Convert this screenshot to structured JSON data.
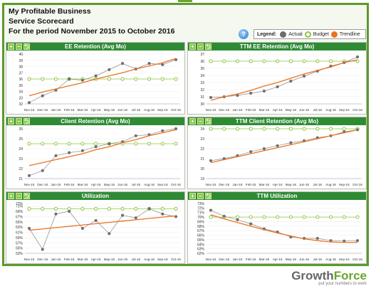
{
  "header": {
    "line1": "My Profitable Business",
    "line2": "Service Scorecard",
    "line3": "For the period November 2015 to October 2016"
  },
  "legend": {
    "title": "Legend:",
    "items": [
      {
        "label": "Actual",
        "color": "#6d6d6d"
      },
      {
        "label": "Budget",
        "color": "#8dc63f"
      },
      {
        "label": "Trendline",
        "color": "#e8731e"
      }
    ]
  },
  "help_icon": "help-question-icon",
  "controls": {
    "add": "+",
    "remove": "−",
    "export": "⮌"
  },
  "brand": {
    "name_a": "Growth",
    "name_b": "Force",
    "tagline": "put your numbers to work"
  },
  "chart_data": [
    {
      "type": "line",
      "title": "EE Retention (Avg Mo)",
      "categories": [
        "Nov-15",
        "Dec-15",
        "Jan-16",
        "Feb-16",
        "Mar-16",
        "Apr-16",
        "May-16",
        "Jun-16",
        "Jul-16",
        "Aug-16",
        "Sep-16",
        "Oct-16"
      ],
      "ylim": [
        32,
        40
      ],
      "ticks": [
        32,
        33,
        34,
        35,
        36,
        37,
        38,
        39,
        40
      ],
      "series": [
        {
          "name": "Actual",
          "values": [
            32.2,
            33.3,
            34.2,
            36.0,
            35.8,
            36.5,
            37.5,
            38.5,
            37.6,
            38.5,
            38.3,
            39.1
          ]
        },
        {
          "name": "Budget",
          "values": [
            36,
            36,
            36,
            36,
            36,
            36,
            36,
            36,
            36,
            36,
            36,
            36
          ]
        },
        {
          "name": "Trendline",
          "values": [
            33.3,
            33.9,
            34.4,
            34.9,
            35.4,
            36.0,
            36.5,
            37.0,
            37.6,
            38.1,
            38.6,
            39.3
          ]
        }
      ]
    },
    {
      "type": "line",
      "title": "TTM EE Retention (Avg Mo)",
      "categories": [
        "Nov-15",
        "Dec-15",
        "Jan-16",
        "Feb-16",
        "Mar-16",
        "Apr-16",
        "May-16",
        "Jun-16",
        "Jul-16",
        "Aug-16",
        "Sep-16",
        "Oct-16"
      ],
      "ylim": [
        30,
        37
      ],
      "ticks": [
        30,
        31,
        32,
        33,
        34,
        35,
        36,
        37
      ],
      "series": [
        {
          "name": "Actual",
          "values": [
            30.9,
            31.0,
            31.2,
            31.5,
            31.8,
            32.4,
            33.2,
            33.9,
            34.6,
            35.3,
            35.8,
            36.6
          ]
        },
        {
          "name": "Budget",
          "values": [
            36,
            36,
            36,
            36,
            36,
            36,
            36,
            36,
            36,
            36,
            36,
            36
          ]
        },
        {
          "name": "Trendline",
          "values": [
            30.5,
            31.0,
            31.4,
            31.9,
            32.5,
            33.0,
            33.6,
            34.2,
            34.7,
            35.2,
            35.8,
            36.2
          ]
        }
      ]
    },
    {
      "type": "line",
      "title": "Client Retention (Avg Mo)",
      "categories": [
        "Nov-15",
        "Dec-15",
        "Jan-16",
        "Feb-16",
        "Mar-16",
        "Apr-16",
        "May-16",
        "Jun-16",
        "Jul-16",
        "Aug-16",
        "Sep-16",
        "Oct-16"
      ],
      "ylim": [
        21,
        26
      ],
      "ticks": [
        21,
        22,
        23,
        24,
        25,
        26
      ],
      "series": [
        {
          "name": "Actual",
          "values": [
            21.3,
            21.8,
            23.3,
            23.6,
            23.8,
            24.2,
            24.5,
            24.7,
            25.3,
            25.4,
            25.8,
            26.0
          ]
        },
        {
          "name": "Budget",
          "values": [
            24.5,
            24.5,
            24.5,
            24.5,
            24.5,
            24.5,
            24.5,
            24.5,
            24.5,
            24.5,
            24.5,
            24.5
          ]
        },
        {
          "name": "Trendline",
          "values": [
            22.3,
            22.6,
            22.9,
            23.2,
            23.5,
            23.9,
            24.2,
            24.6,
            24.9,
            25.3,
            25.6,
            25.9
          ]
        }
      ]
    },
    {
      "type": "line",
      "title": "TTM Client Retention (Avg Mo)",
      "categories": [
        "Nov-15",
        "Dec-15",
        "Jan-16",
        "Feb-16",
        "Mar-16",
        "Apr-16",
        "May-16",
        "Jun-16",
        "Jul-16",
        "Aug-16",
        "Sep-16",
        "Oct-16"
      ],
      "ylim": [
        19,
        24
      ],
      "ticks": [
        19,
        20,
        21,
        22,
        23,
        24
      ],
      "series": [
        {
          "name": "Actual",
          "values": [
            20.8,
            21.0,
            21.3,
            21.7,
            22.0,
            22.3,
            22.6,
            22.8,
            23.1,
            23.3,
            23.7,
            23.9
          ]
        },
        {
          "name": "Budget",
          "values": [
            24,
            24,
            24,
            24,
            24,
            24,
            24,
            24,
            24,
            24,
            24,
            24
          ]
        },
        {
          "name": "Trendline",
          "values": [
            20.6,
            20.9,
            21.2,
            21.5,
            21.8,
            22.1,
            22.4,
            22.7,
            23.0,
            23.3,
            23.6,
            23.9
          ]
        }
      ]
    },
    {
      "type": "line",
      "title": "Utilization",
      "categories": [
        "Nov-15",
        "Dec-15",
        "Jan-16",
        "Feb-16",
        "Mar-16",
        "Apr-16",
        "May-16",
        "Jun-16",
        "Jul-16",
        "Aug-16",
        "Sep-16",
        "Oct-16"
      ],
      "ylim": [
        53,
        72
      ],
      "ticks": [
        "53%",
        "55%",
        "57%",
        "59%",
        "61%",
        "63%",
        "65%",
        "67%",
        "69%",
        "71%",
        "72%"
      ],
      "tick_values": [
        53,
        55,
        57,
        59,
        61,
        63,
        65,
        67,
        69,
        71,
        72
      ],
      "series": [
        {
          "name": "Actual",
          "values": [
            62.5,
            54.5,
            68.0,
            69.0,
            62.5,
            65.5,
            60.5,
            67.5,
            66.5,
            70.0,
            68.0,
            67.0
          ]
        },
        {
          "name": "Budget",
          "values": [
            70,
            70,
            70,
            70,
            70,
            70,
            70,
            70,
            70,
            70,
            70,
            70
          ]
        },
        {
          "name": "Trendline",
          "values": [
            61.8,
            62.3,
            62.8,
            63.3,
            63.8,
            64.3,
            64.8,
            65.3,
            65.8,
            66.3,
            66.8,
            67.3
          ]
        }
      ]
    },
    {
      "type": "line",
      "title": "TTM Utilization",
      "categories": [
        "Nov-15",
        "Dec-15",
        "Jan-16",
        "Feb-16",
        "Mar-16",
        "Apr-16",
        "May-16",
        "Jun-16",
        "Jul-16",
        "Aug-16",
        "Sep-16",
        "Oct-16"
      ],
      "ylim": [
        62,
        73
      ],
      "ticks": [
        "62%",
        "63%",
        "64%",
        "65%",
        "66%",
        "67%",
        "68%",
        "69%",
        "70%",
        "71%",
        "72%",
        "73%"
      ],
      "tick_values": [
        62,
        63,
        64,
        65,
        66,
        67,
        68,
        69,
        70,
        71,
        72,
        73
      ],
      "series": [
        {
          "name": "Actual",
          "values": [
            71.5,
            70.2,
            69.4,
            68.5,
            67.4,
            66.7,
            65.6,
            65.3,
            65.3,
            64.8,
            64.7,
            64.8
          ]
        },
        {
          "name": "Budget",
          "values": [
            70,
            70,
            70,
            70,
            70,
            70,
            70,
            70,
            70,
            70,
            70,
            70
          ]
        },
        {
          "name": "Trendline",
          "values": [
            70.5,
            69.6,
            68.8,
            68.0,
            67.2,
            66.5,
            65.8,
            65.2,
            64.8,
            64.5,
            64.4,
            64.4
          ]
        }
      ]
    }
  ]
}
